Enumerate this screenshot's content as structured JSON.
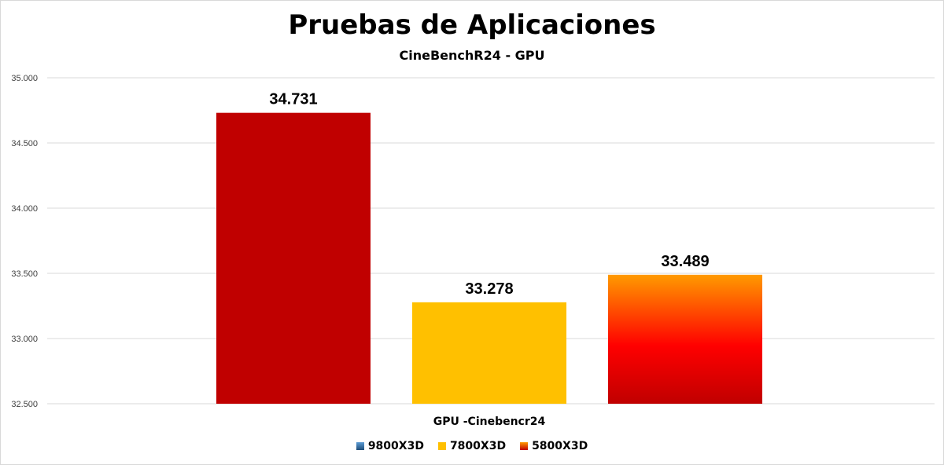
{
  "chart_data": {
    "type": "bar",
    "title": "Pruebas de Aplicaciones",
    "subtitle": "CineBenchR24 - GPU",
    "categories": [
      "GPU -Cinebencr24"
    ],
    "series": [
      {
        "name": "9800X3D",
        "values": [
          34731
        ],
        "label": "34.731",
        "color": "#c00000"
      },
      {
        "name": "7800X3D",
        "values": [
          33278
        ],
        "label": "33.278",
        "color": "#ffc000"
      },
      {
        "name": "5800X3D",
        "values": [
          33489
        ],
        "label": "33.489",
        "color": "#ff0000"
      }
    ],
    "ylim": [
      32500,
      35000
    ],
    "yticks": [
      {
        "value": 32500,
        "label": "32.500"
      },
      {
        "value": 33000,
        "label": "33.000"
      },
      {
        "value": 33500,
        "label": "33.500"
      },
      {
        "value": 34000,
        "label": "34.000"
      },
      {
        "value": 34500,
        "label": "34.500"
      },
      {
        "value": 35000,
        "label": "35.000"
      }
    ],
    "grid": true,
    "legend_position": "bottom",
    "legend": [
      {
        "name": "9800X3D",
        "color": "#2e75b6"
      },
      {
        "name": "7800X3D",
        "color": "#ffc000"
      },
      {
        "name": "5800X3D",
        "color": "#ff0000"
      }
    ]
  }
}
